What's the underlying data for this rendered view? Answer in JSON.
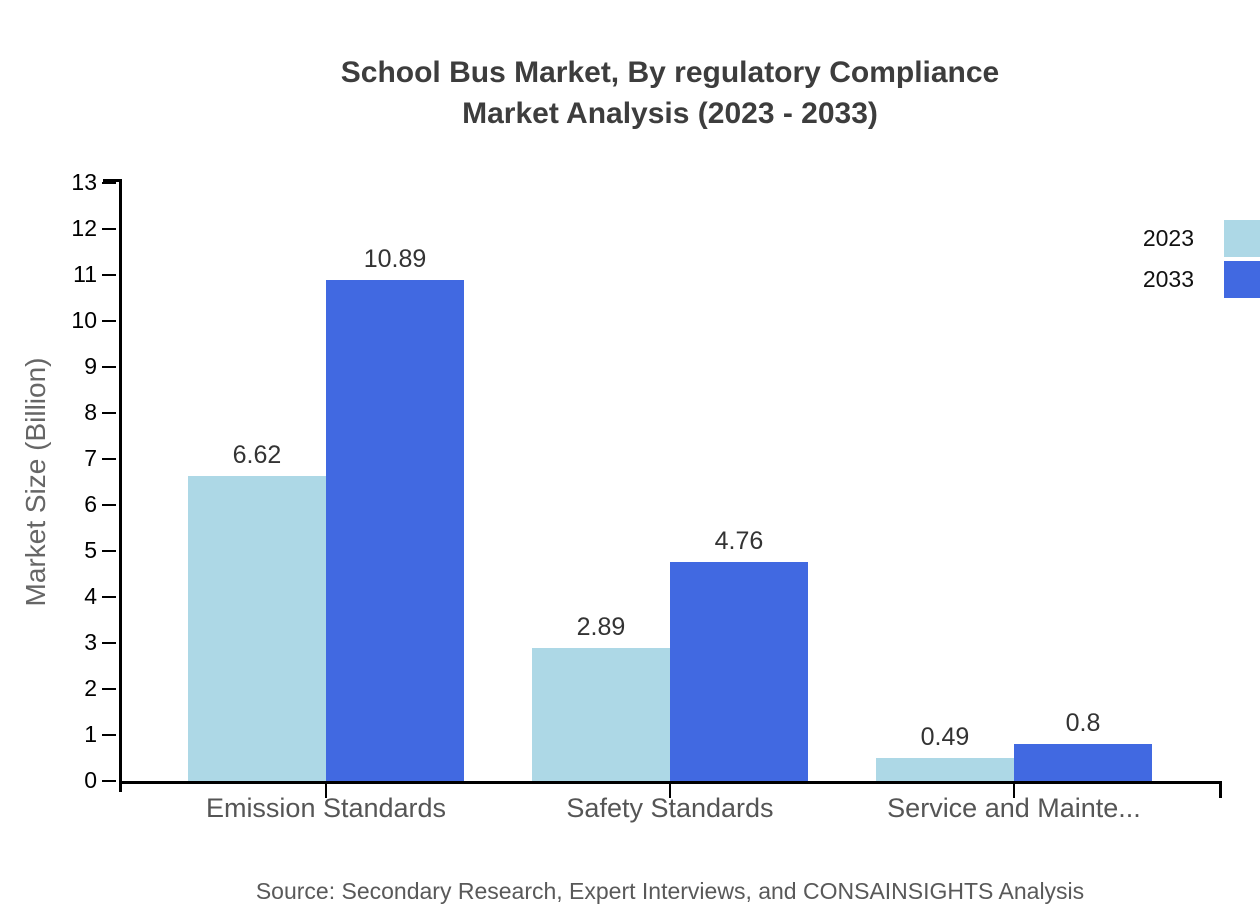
{
  "title": {
    "line1": "School Bus Market, By regulatory Compliance",
    "line2": "Market Analysis (2023 - 2033)"
  },
  "source": "Source: Secondary Research, Expert Interviews, and CONSAINSIGHTS Analysis",
  "legend": {
    "position": "top-right",
    "items": [
      "2023",
      "2033"
    ]
  },
  "chart_data": {
    "type": "bar",
    "title": "School Bus Market, By regulatory Compliance Market Analysis (2023 - 2033)",
    "categories": [
      "Emission Standards",
      "Safety Standards",
      "Service and Mainte..."
    ],
    "series": [
      {
        "name": "2023",
        "color": "#ADD8E6",
        "values": [
          6.62,
          2.89,
          0.49
        ]
      },
      {
        "name": "2033",
        "color": "#4169E1",
        "values": [
          10.89,
          4.76,
          0.8
        ]
      }
    ],
    "xlabel": "",
    "ylabel": "Market Size (Billion)",
    "ylim": [
      0,
      13
    ],
    "yticks": [
      0,
      1,
      2,
      3,
      4,
      5,
      6,
      7,
      8,
      9,
      10,
      11,
      12,
      13
    ],
    "grid": false,
    "value_labels": true,
    "legend_position": "top-right"
  },
  "colors": {
    "background": "#ffffff",
    "title_text": "#3d3d3d",
    "axis": "#000000",
    "tick_label": "#000000",
    "category_label": "#555555",
    "value_label": "#333333",
    "ylabel_text": "#666666",
    "source_text": "#595959",
    "series_2023": "#ADD8E6",
    "series_2033": "#4169E1"
  }
}
